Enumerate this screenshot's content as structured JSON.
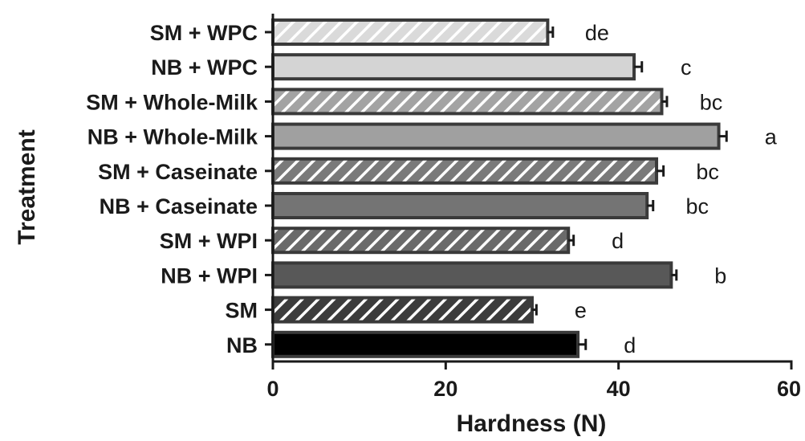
{
  "chart_data": {
    "type": "bar",
    "orientation": "horizontal",
    "xlabel": "Hardness (N)",
    "ylabel": "Treatment",
    "xlim": [
      0,
      60
    ],
    "xticks": [
      0,
      20,
      40,
      60
    ],
    "grid": false,
    "categories": [
      "SM + WPC",
      "NB + WPC",
      "SM + Whole-Milk",
      "NB + Whole-Milk",
      "SM + Caseinate",
      "NB + Caseinate",
      "SM + WPI",
      "NB + WPI",
      "SM",
      "NB"
    ],
    "values": [
      31.8,
      41.8,
      45.0,
      51.6,
      44.4,
      43.3,
      34.2,
      46.1,
      30.0,
      35.3
    ],
    "errors": [
      0.6,
      0.9,
      0.6,
      0.9,
      0.8,
      0.7,
      0.6,
      0.6,
      0.5,
      0.9
    ],
    "significance": [
      "de",
      "c",
      "bc",
      "a",
      "bc",
      "bc",
      "d",
      "b",
      "e",
      "d"
    ],
    "colors": [
      "#dadada",
      "#d4d4d4",
      "#a3a3a3",
      "#a0a0a0",
      "#7a7a7a",
      "#747474",
      "#6a6a6a",
      "#585858",
      "#3c3c3c",
      "#000000"
    ],
    "hatched": [
      true,
      false,
      true,
      false,
      true,
      false,
      true,
      false,
      true,
      false
    ]
  }
}
